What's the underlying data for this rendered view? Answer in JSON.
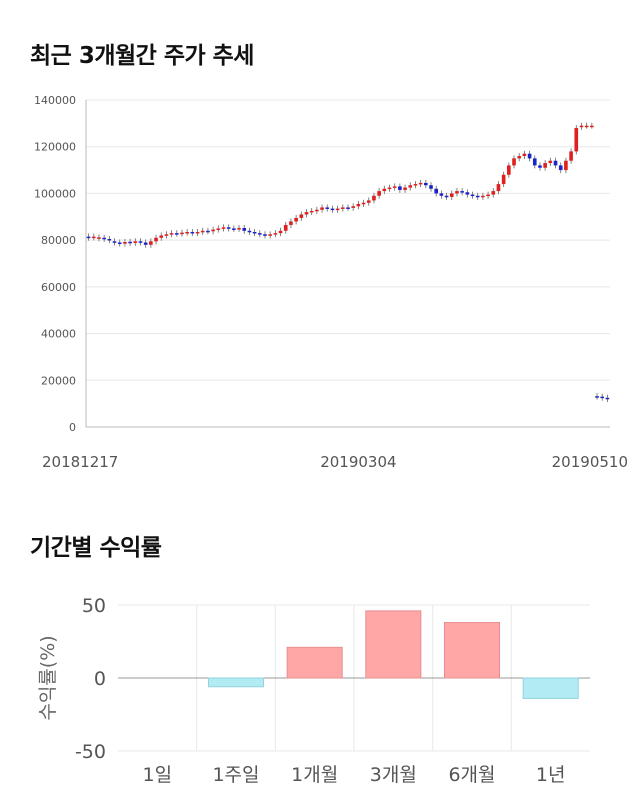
{
  "titles": {
    "price": "최근 3개월간 주가 추세",
    "returns": "기간별 수익률"
  },
  "colors": {
    "up": "#e0201e",
    "down": "#1a24c8",
    "positive_bar": "#ffa6a6",
    "negative_bar": "#b2ebf2",
    "grid": "#e8e8e8"
  },
  "chart_data": [
    {
      "type": "candlestick",
      "title": "최근 3개월간 주가 추세",
      "ylim": [
        0,
        140000
      ],
      "yticks": [
        "0",
        "20000",
        "40000",
        "60000",
        "80000",
        "100000",
        "120000",
        "140000"
      ],
      "ytick_values": [
        0,
        20000,
        40000,
        60000,
        80000,
        100000,
        120000,
        140000
      ],
      "xtick_labels": [
        "20181217",
        "20190304",
        "20190510"
      ],
      "xtick_index": [
        0,
        52,
        98
      ],
      "grid": true,
      "closes": [
        81000,
        81500,
        81200,
        80500,
        80000,
        79000,
        78500,
        79200,
        78800,
        79500,
        79000,
        78000,
        79500,
        81000,
        82000,
        82500,
        83000,
        82800,
        83200,
        83500,
        83000,
        83500,
        84000,
        83800,
        84500,
        85000,
        85500,
        85000,
        84800,
        85200,
        84000,
        83500,
        83000,
        82500,
        82000,
        82500,
        83000,
        84000,
        86500,
        88000,
        89500,
        91000,
        92000,
        92500,
        93000,
        94000,
        93500,
        93000,
        93500,
        94000,
        93800,
        94500,
        95500,
        96000,
        97000,
        99000,
        101000,
        102000,
        102500,
        103000,
        101500,
        102500,
        103500,
        104000,
        104500,
        103500,
        102000,
        100000,
        99000,
        98500,
        100000,
        101000,
        100500,
        99500,
        99000,
        98500,
        99000,
        99500,
        101000,
        104000,
        108000,
        112000,
        115000,
        116000,
        117000,
        115000,
        112000,
        111000,
        113000,
        114000,
        112000,
        110000,
        114000,
        118000,
        128000,
        129000,
        129000,
        129000,
        13000,
        12500,
        12000
      ],
      "opens": [
        81500,
        81200,
        80800,
        81000,
        80500,
        79500,
        79000,
        78500,
        79300,
        78800,
        79500,
        79000,
        78000,
        79500,
        81000,
        82000,
        82500,
        83000,
        82800,
        83200,
        83500,
        83000,
        83500,
        84000,
        83800,
        84500,
        85000,
        85500,
        85000,
        84800,
        85200,
        84000,
        83500,
        83000,
        82500,
        82000,
        82500,
        83000,
        84000,
        86500,
        88000,
        89500,
        91000,
        92000,
        92500,
        93000,
        94000,
        93500,
        93000,
        93500,
        94000,
        93800,
        94500,
        95500,
        96000,
        97000,
        99000,
        101000,
        102000,
        102500,
        103000,
        101500,
        102500,
        103500,
        104000,
        104500,
        103500,
        102000,
        100000,
        99000,
        98500,
        100000,
        101000,
        100500,
        99500,
        99000,
        98500,
        99000,
        99500,
        101000,
        104000,
        108000,
        112000,
        115000,
        116000,
        117000,
        115000,
        112000,
        111000,
        113000,
        114000,
        112000,
        110000,
        114000,
        118000,
        128500,
        129000,
        129000,
        13200,
        13000,
        12500
      ]
    },
    {
      "type": "bar",
      "title": "기간별 수익률",
      "categories": [
        "1일",
        "1주일",
        "1개월",
        "3개월",
        "6개월",
        "1년"
      ],
      "values": [
        0,
        -6,
        21,
        46,
        38,
        -14
      ],
      "ylabel": "수익률(%)",
      "ylim": [
        -50,
        50
      ],
      "yticks": [
        "50",
        "0",
        "-50"
      ],
      "ytick_values": [
        50,
        0,
        -50
      ],
      "grid": true
    }
  ]
}
